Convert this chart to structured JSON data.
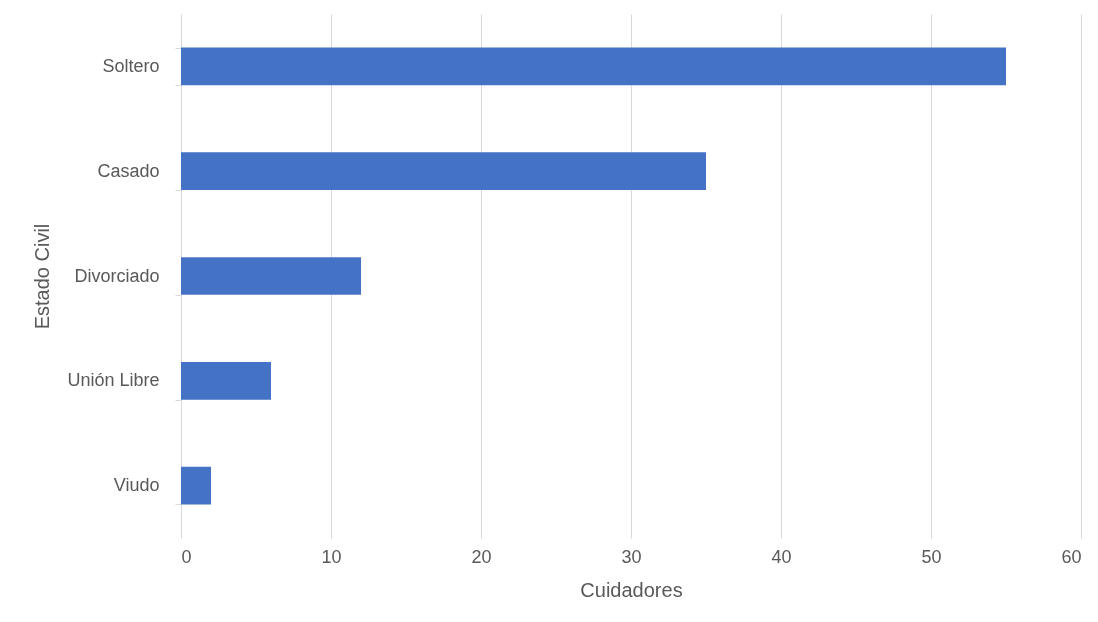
{
  "chart_data": {
    "type": "bar",
    "orientation": "horizontal",
    "xlabel": "Cuidadores",
    "ylabel": "Estado Civil",
    "categories": [
      "Soltero",
      "Casado",
      "Divorciado",
      "Unión Libre",
      "Viudo"
    ],
    "values": [
      55,
      35,
      12,
      6,
      2
    ],
    "color": "#4472c4",
    "xlim": [
      0,
      60
    ],
    "xticks": [
      0,
      10,
      20,
      30,
      40,
      50,
      60
    ],
    "grid": "x"
  }
}
